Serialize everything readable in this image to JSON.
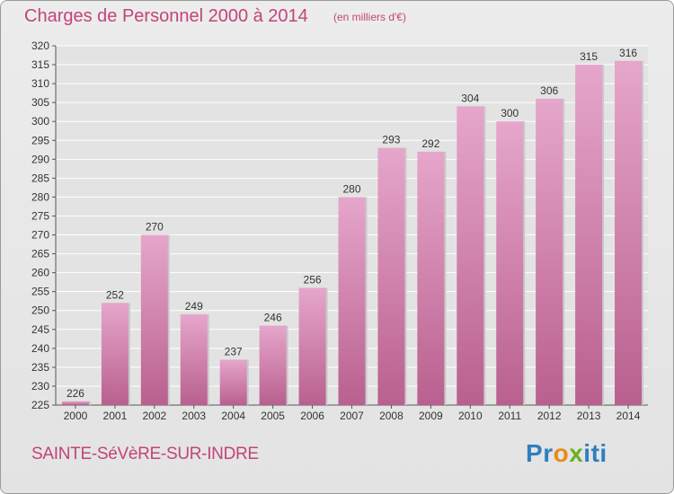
{
  "header": {
    "title": "Charges de Personnel 2000 à 2014",
    "subtitle": "(en milliers d'€)"
  },
  "footer": {
    "place": "SAINTE-SéVèRE-SUR-INDRE",
    "logo": {
      "letters": [
        "P",
        "r",
        "o",
        "x",
        "i",
        "t",
        "i"
      ],
      "colors": [
        "#2f7fc1",
        "#2f7fc1",
        "#e88a1a",
        "#6ab023",
        "#2f7fc1",
        "#2f7fc1",
        "#2f7fc1"
      ]
    }
  },
  "colors": {
    "bar_top": "#e6a6cb",
    "bar_bottom": "#b9608f",
    "title": "#c2447a",
    "grid": "#ffffff"
  },
  "chart_data": {
    "type": "bar",
    "title": "Charges de Personnel 2000 à 2014",
    "subtitle": "(en milliers d'€)",
    "categories": [
      "2000",
      "2001",
      "2002",
      "2003",
      "2004",
      "2005",
      "2006",
      "2007",
      "2008",
      "2009",
      "2010",
      "2011",
      "2012",
      "2013",
      "2014"
    ],
    "values": [
      226,
      252,
      270,
      249,
      237,
      246,
      256,
      280,
      293,
      292,
      304,
      300,
      306,
      315,
      316
    ],
    "ylim": [
      225,
      320
    ],
    "yticks": [
      225,
      230,
      235,
      240,
      245,
      250,
      255,
      260,
      265,
      270,
      275,
      280,
      285,
      290,
      295,
      300,
      305,
      310,
      315,
      320
    ],
    "grid": true,
    "data_labels": true,
    "xlabel": "",
    "ylabel": ""
  }
}
